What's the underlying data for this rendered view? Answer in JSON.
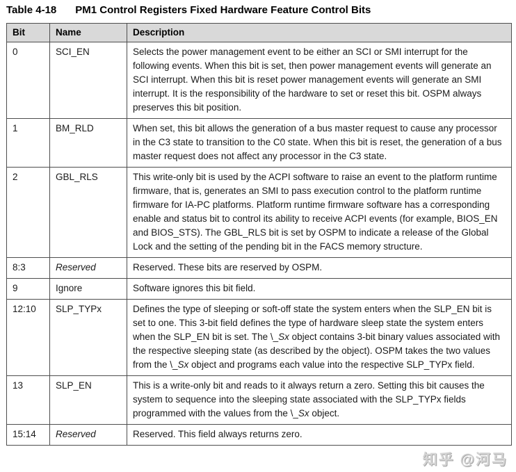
{
  "page": {
    "title_label": "Table 4-18",
    "title_caption": "PM1 Control Registers Fixed Hardware Feature Control Bits"
  },
  "watermark": "知乎 @河马",
  "colors": {
    "header_bg": "#d9d9d9",
    "border": "#4d4d4d",
    "text": "#1a1a1a",
    "watermark": "#d4d4d4"
  },
  "table": {
    "columns": [
      "Bit",
      "Name",
      "Description"
    ],
    "rows": [
      {
        "bit": "0",
        "name": "SCI_EN",
        "name_italic": false,
        "desc": [
          {
            "t": "Selects the power management event to be either an SCI or SMI interrupt for the following events. When this bit is set, then power management events will generate an SCI interrupt. When this bit is reset power management events will generate an SMI interrupt. It is the responsibility of the hardware to set or reset this bit. OSPM always preserves this bit position."
          }
        ]
      },
      {
        "bit": "1",
        "name": "BM_RLD",
        "name_italic": false,
        "desc": [
          {
            "t": "When set, this bit allows the generation of a bus master request to cause any processor in the C3 state to transition to the C0 state. When this bit is reset, the generation of a bus master request does not affect any processor in the C3 state."
          }
        ]
      },
      {
        "bit": "2",
        "name": "GBL_RLS",
        "name_italic": false,
        "desc": [
          {
            "t": "This write-only bit is used by the ACPI software to raise an event to the platform runtime firmware, that is, generates an SMI to pass execution control to the platform runtime firmware for IA-PC platforms. Platform runtime firmware software has a corresponding enable and status bit to control its ability to receive ACPI events (for example, BIOS_EN and BIOS_STS). The GBL_RLS bit is set by OSPM to indicate a release of the Global Lock and the setting of the pending bit in the FACS memory structure."
          }
        ]
      },
      {
        "bit": "8:3",
        "name": "Reserved",
        "name_italic": true,
        "desc": [
          {
            "t": "Reserved. These bits are reserved by OSPM."
          }
        ]
      },
      {
        "bit": "9",
        "name": "Ignore",
        "name_italic": false,
        "desc": [
          {
            "t": "Software ignores this bit field."
          }
        ]
      },
      {
        "bit": "12:10",
        "name": "SLP_TYPx",
        "name_italic": false,
        "desc": [
          {
            "t": "Defines the type of sleeping or soft-off state the system enters when the SLP_EN bit is set to one. This 3-bit field defines the type of hardware sleep state the system enters when the SLP_EN bit is set. The \\_"
          },
          {
            "t": "Sx",
            "i": true
          },
          {
            "t": " object contains 3-bit binary values associated with the respective sleeping state (as described by the object). OSPM takes the two values from the \\_"
          },
          {
            "t": "Sx",
            "i": true
          },
          {
            "t": " object and programs each value into the respective SLP_TYPx field."
          }
        ]
      },
      {
        "bit": "13",
        "name": "SLP_EN",
        "name_italic": false,
        "desc": [
          {
            "t": "This is a write-only bit and reads to it always return a zero. Setting this bit causes the system to sequence into the sleeping state associated with the SLP_TYPx fields programmed with the values from the \\_"
          },
          {
            "t": "Sx",
            "i": true
          },
          {
            "t": " object."
          }
        ]
      },
      {
        "bit": "15:14",
        "name": "Reserved",
        "name_italic": true,
        "desc": [
          {
            "t": "Reserved. This field always returns zero."
          }
        ]
      }
    ]
  }
}
